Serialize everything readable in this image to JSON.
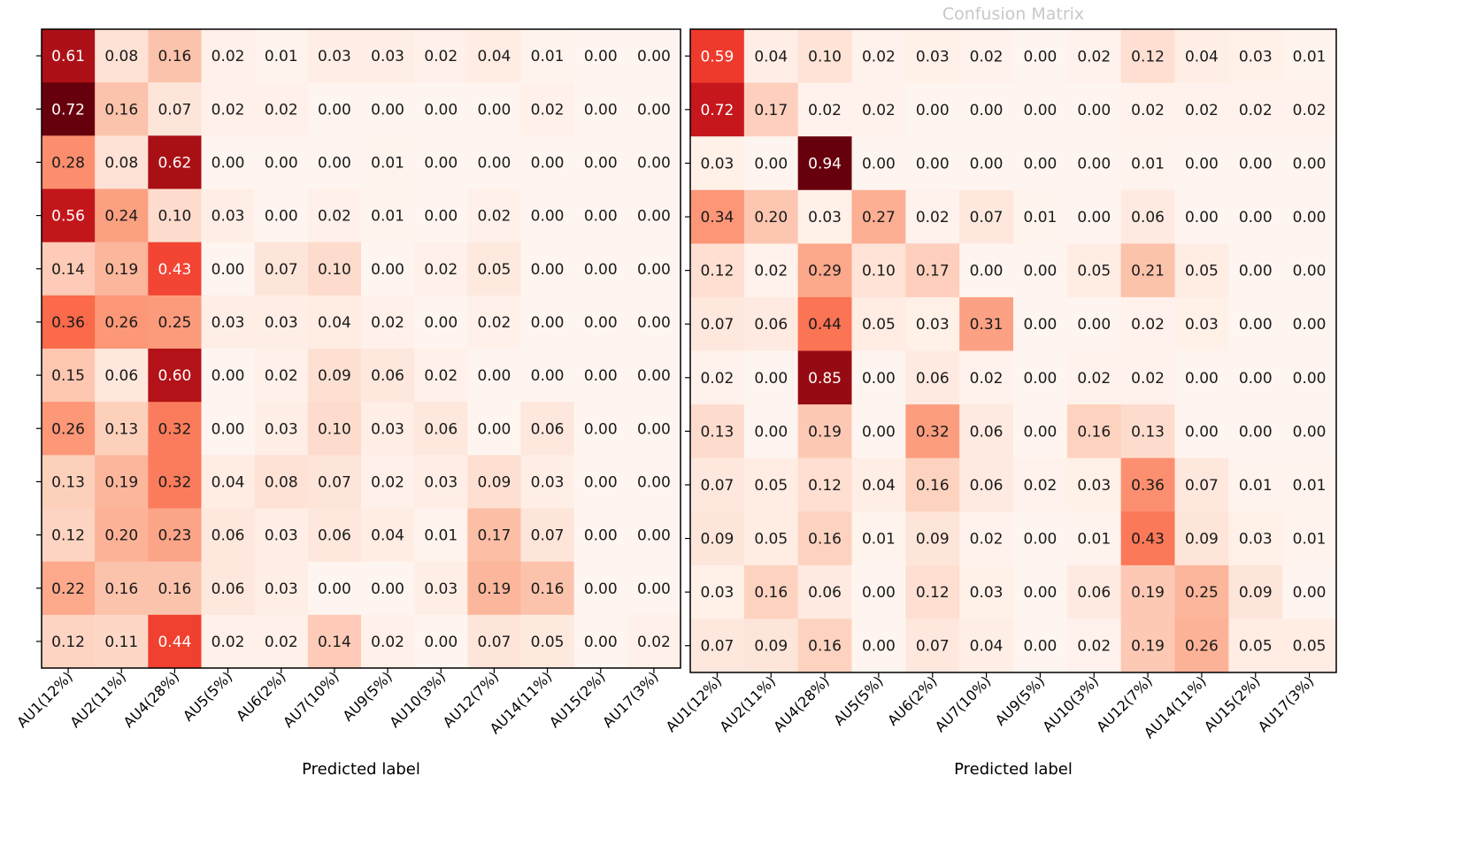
{
  "chart_data": [
    {
      "type": "heatmap",
      "title": "",
      "xlabel": "Predicted label",
      "ylabel": "",
      "colormap": "Reds",
      "value_range": [
        0,
        0.72
      ],
      "y_tick_labels_visible": false,
      "x_tick_labels": [
        "AU1(12%)",
        "AU2(11%)",
        "AU4(28%)",
        "AU5(5%)",
        "AU6(2%)",
        "AU7(10%)",
        "AU9(5%)",
        "AU10(3%)",
        "AU12(7%)",
        "AU14(11%)",
        "AU15(2%)",
        "AU17(3%)"
      ],
      "values": [
        [
          0.61,
          0.08,
          0.16,
          0.02,
          0.01,
          0.03,
          0.03,
          0.02,
          0.04,
          0.01,
          0.0,
          0.0
        ],
        [
          0.72,
          0.16,
          0.07,
          0.02,
          0.02,
          0.0,
          0.0,
          0.0,
          0.0,
          0.02,
          0.0,
          0.0
        ],
        [
          0.28,
          0.08,
          0.62,
          0.0,
          0.0,
          0.0,
          0.01,
          0.0,
          0.0,
          0.0,
          0.0,
          0.0
        ],
        [
          0.56,
          0.24,
          0.1,
          0.03,
          0.0,
          0.02,
          0.01,
          0.0,
          0.02,
          0.0,
          0.0,
          0.0
        ],
        [
          0.14,
          0.19,
          0.43,
          0.0,
          0.07,
          0.1,
          0.0,
          0.02,
          0.05,
          0.0,
          0.0,
          0.0
        ],
        [
          0.36,
          0.26,
          0.25,
          0.03,
          0.03,
          0.04,
          0.02,
          0.0,
          0.02,
          0.0,
          0.0,
          0.0
        ],
        [
          0.15,
          0.06,
          0.6,
          0.0,
          0.02,
          0.09,
          0.06,
          0.02,
          0.0,
          0.0,
          0.0,
          0.0
        ],
        [
          0.26,
          0.13,
          0.32,
          0.0,
          0.03,
          0.1,
          0.03,
          0.06,
          0.0,
          0.06,
          0.0,
          0.0
        ],
        [
          0.13,
          0.19,
          0.32,
          0.04,
          0.08,
          0.07,
          0.02,
          0.03,
          0.09,
          0.03,
          0.0,
          0.0
        ],
        [
          0.12,
          0.2,
          0.23,
          0.06,
          0.03,
          0.06,
          0.04,
          0.01,
          0.17,
          0.07,
          0.0,
          0.0
        ],
        [
          0.22,
          0.16,
          0.16,
          0.06,
          0.03,
          0.0,
          0.0,
          0.03,
          0.19,
          0.16,
          0.0,
          0.0
        ],
        [
          0.12,
          0.11,
          0.44,
          0.02,
          0.02,
          0.14,
          0.02,
          0.0,
          0.07,
          0.05,
          0.0,
          0.02
        ]
      ]
    },
    {
      "type": "heatmap",
      "title": "Confusion Matrix",
      "title_partially_clipped": true,
      "xlabel": "Predicted label",
      "ylabel": "",
      "colormap": "Reds",
      "value_range": [
        0,
        0.94
      ],
      "y_tick_labels_visible": false,
      "x_tick_labels": [
        "AU1(12%)",
        "AU2(11%)",
        "AU4(28%)",
        "AU5(5%)",
        "AU6(2%)",
        "AU7(10%)",
        "AU9(5%)",
        "AU10(3%)",
        "AU12(7%)",
        "AU14(11%)",
        "AU15(2%)",
        "AU17(3%)"
      ],
      "values": [
        [
          0.59,
          0.04,
          0.1,
          0.02,
          0.03,
          0.02,
          0.0,
          0.02,
          0.12,
          0.04,
          0.03,
          0.01
        ],
        [
          0.72,
          0.17,
          0.02,
          0.02,
          0.0,
          0.0,
          0.0,
          0.0,
          0.02,
          0.02,
          0.02,
          0.02
        ],
        [
          0.03,
          0.0,
          0.94,
          0.0,
          0.0,
          0.0,
          0.0,
          0.0,
          0.01,
          0.0,
          0.0,
          0.0
        ],
        [
          0.34,
          0.2,
          0.03,
          0.27,
          0.02,
          0.07,
          0.01,
          0.0,
          0.06,
          0.0,
          0.0,
          0.0
        ],
        [
          0.12,
          0.02,
          0.29,
          0.1,
          0.17,
          0.0,
          0.0,
          0.05,
          0.21,
          0.05,
          0.0,
          0.0
        ],
        [
          0.07,
          0.06,
          0.44,
          0.05,
          0.03,
          0.31,
          0.0,
          0.0,
          0.02,
          0.03,
          0.0,
          0.0
        ],
        [
          0.02,
          0.0,
          0.85,
          0.0,
          0.06,
          0.02,
          0.0,
          0.02,
          0.02,
          0.0,
          0.0,
          0.0
        ],
        [
          0.13,
          0.0,
          0.19,
          0.0,
          0.32,
          0.06,
          0.0,
          0.16,
          0.13,
          0.0,
          0.0,
          0.0
        ],
        [
          0.07,
          0.05,
          0.12,
          0.04,
          0.16,
          0.06,
          0.02,
          0.03,
          0.36,
          0.07,
          0.01,
          0.01
        ],
        [
          0.09,
          0.05,
          0.16,
          0.01,
          0.09,
          0.02,
          0.0,
          0.01,
          0.43,
          0.09,
          0.03,
          0.01
        ],
        [
          0.03,
          0.16,
          0.06,
          0.0,
          0.12,
          0.03,
          0.0,
          0.06,
          0.19,
          0.25,
          0.09,
          0.0
        ],
        [
          0.07,
          0.09,
          0.16,
          0.0,
          0.07,
          0.04,
          0.0,
          0.02,
          0.19,
          0.26,
          0.05,
          0.05
        ]
      ]
    }
  ]
}
